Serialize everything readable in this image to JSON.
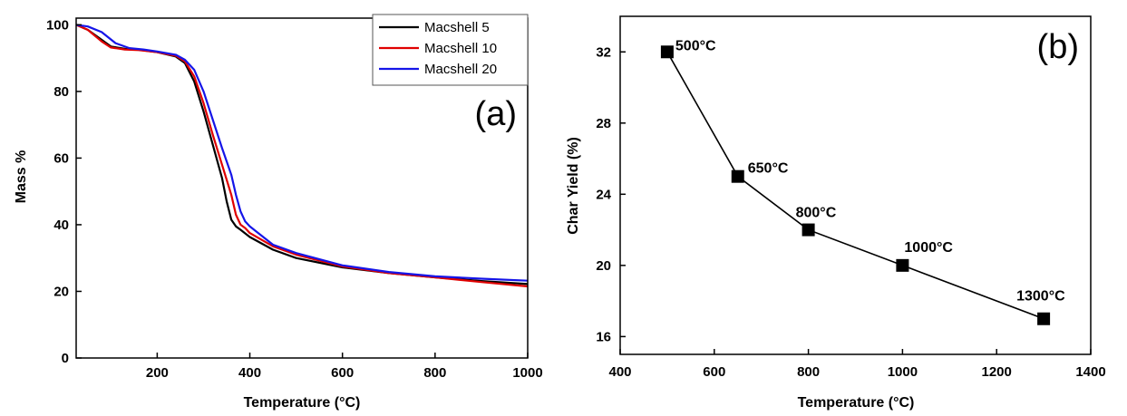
{
  "chart_data": [
    {
      "type": "line",
      "panel_label": "(a)",
      "xlabel": "Temperature (°C)",
      "ylabel": "Mass %",
      "xlim": [
        25,
        1000
      ],
      "ylim": [
        0,
        102
      ],
      "xticks": [
        200,
        400,
        600,
        800,
        1000
      ],
      "yticks": [
        0,
        20,
        40,
        60,
        80,
        100
      ],
      "grid": false,
      "legend": "top-right",
      "series": [
        {
          "name": "Macshell 5",
          "color": "#000000",
          "x": [
            25,
            50,
            80,
            100,
            130,
            160,
            200,
            240,
            260,
            280,
            300,
            320,
            340,
            350,
            360,
            370,
            380,
            400,
            450,
            500,
            600,
            700,
            800,
            900,
            1000
          ],
          "y": [
            100,
            98.5,
            95.5,
            93.5,
            92.8,
            92.5,
            91.8,
            90.5,
            88.5,
            83,
            74,
            64,
            54,
            47,
            41.5,
            39.5,
            38.5,
            36.3,
            32.5,
            30,
            27.2,
            25.5,
            24.2,
            23.1,
            22.2
          ]
        },
        {
          "name": "Macshell 10",
          "color": "#e00000",
          "x": [
            25,
            50,
            80,
            100,
            130,
            160,
            200,
            240,
            260,
            280,
            300,
            320,
            340,
            360,
            370,
            380,
            390,
            400,
            450,
            500,
            600,
            700,
            800,
            900,
            1000
          ],
          "y": [
            100,
            98.5,
            95,
            93.2,
            92.6,
            92.4,
            91.8,
            90.7,
            89,
            84.5,
            76.5,
            67,
            58,
            49,
            43,
            40,
            39,
            37.5,
            33.5,
            31,
            27.5,
            25.5,
            24.2,
            22.8,
            21.5
          ]
        },
        {
          "name": "Macshell 20",
          "color": "#1515e8",
          "x": [
            25,
            50,
            80,
            110,
            140,
            170,
            200,
            240,
            260,
            280,
            300,
            320,
            340,
            360,
            370,
            380,
            390,
            400,
            450,
            500,
            600,
            700,
            800,
            900,
            1000
          ],
          "y": [
            100,
            99.5,
            97.8,
            94.5,
            93,
            92.6,
            92,
            91,
            89.5,
            86.5,
            80,
            71.5,
            63,
            55,
            49,
            44,
            41,
            39.5,
            34,
            31.5,
            27.8,
            25.8,
            24.5,
            23.8,
            23.2
          ]
        }
      ]
    },
    {
      "type": "line",
      "panel_label": "(b)",
      "xlabel": "Temperature (°C)",
      "ylabel": "Char Yield (%)",
      "xlim": [
        400,
        1400
      ],
      "ylim": [
        15,
        34
      ],
      "xticks": [
        400,
        600,
        800,
        1000,
        1200,
        1400
      ],
      "yticks": [
        16,
        20,
        24,
        28,
        32
      ],
      "grid": false,
      "marker": "square",
      "color": "#000000",
      "x": [
        500,
        650,
        800,
        1000,
        1300
      ],
      "y": [
        32,
        25,
        22,
        20,
        17
      ],
      "point_labels": [
        "500°C",
        "650°C",
        "800°C",
        "1000°C",
        "1300°C"
      ]
    }
  ]
}
